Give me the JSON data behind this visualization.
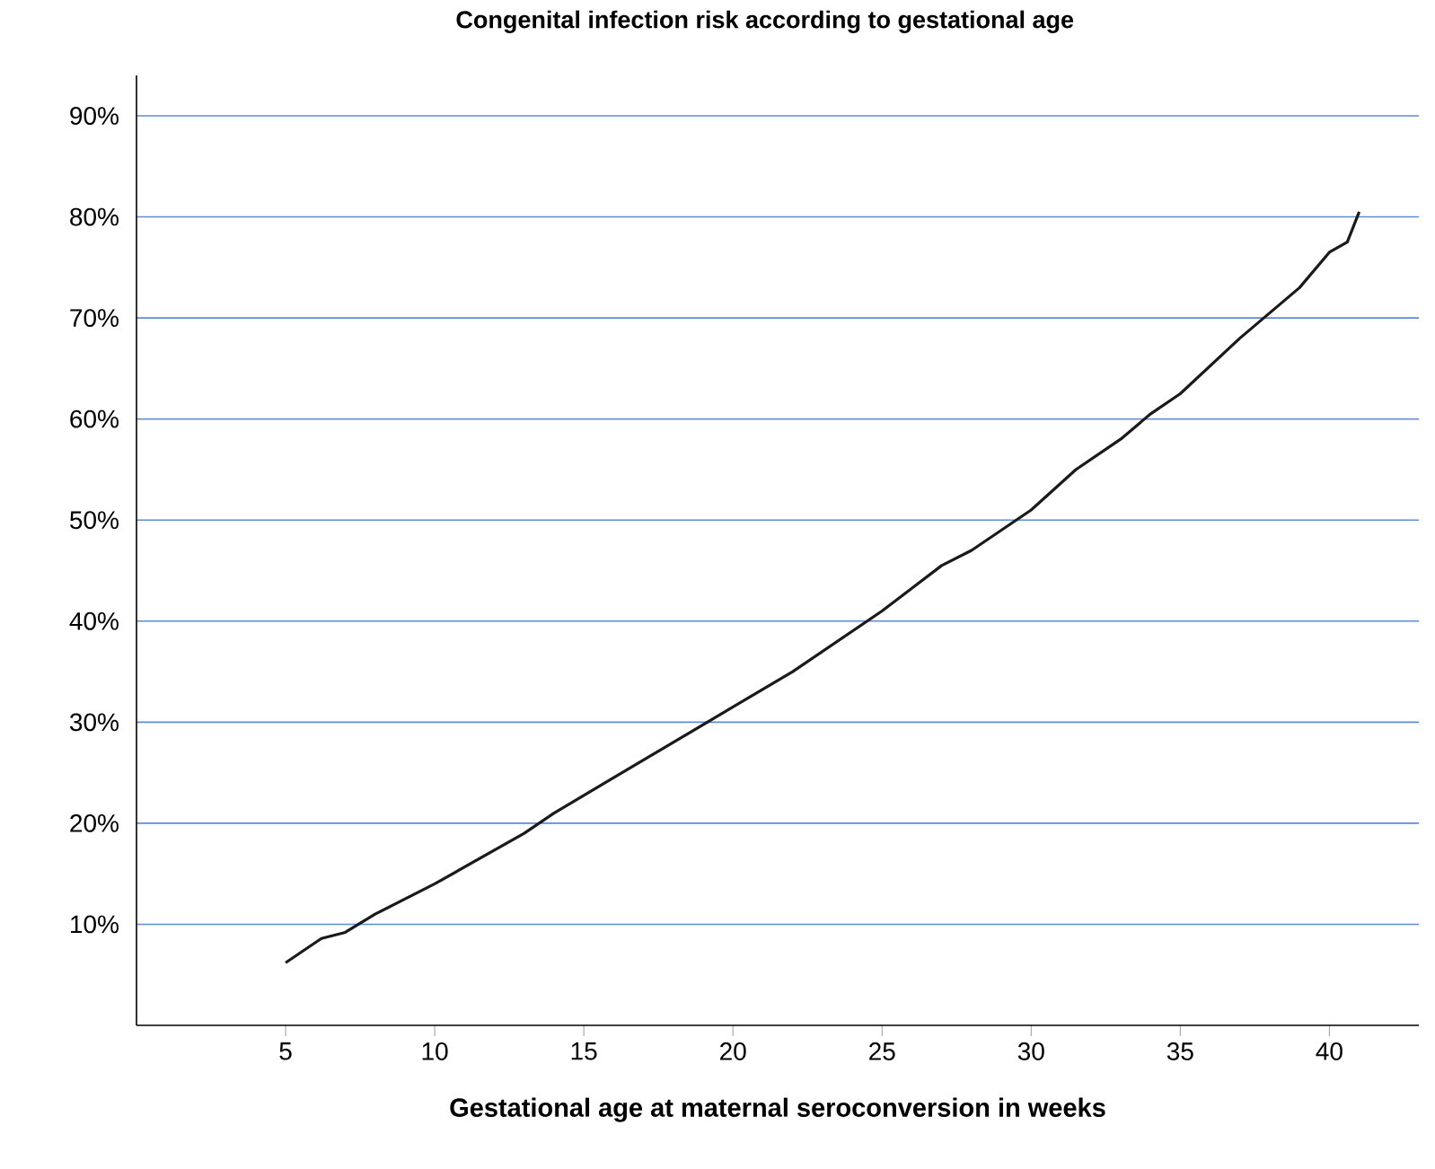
{
  "chart_data": {
    "type": "line",
    "title": "Congenital infection risk according to gestational age",
    "xlabel": "Gestational age at maternal seroconversion in weeks",
    "series": [
      {
        "color": "#1a1a1a",
        "x": [
          5,
          6.2,
          7,
          8,
          10,
          13,
          14,
          16,
          20,
          22,
          25,
          27,
          28,
          30,
          31.5,
          33,
          34,
          35,
          37,
          39,
          40,
          40.6,
          41
        ],
        "values": [
          6.2,
          8.6,
          9.2,
          11,
          14,
          19,
          21,
          24.5,
          31.5,
          35,
          41,
          45.5,
          47,
          51,
          55,
          58,
          60.5,
          62.5,
          68,
          73,
          76.5,
          77.5,
          80.5
        ]
      }
    ],
    "xlim": [
      0,
      43
    ],
    "ylim": [
      0,
      94
    ],
    "xticks": [
      5,
      10,
      15,
      20,
      25,
      30,
      35,
      40
    ],
    "yticks": [
      {
        "value": 10,
        "label": "10%"
      },
      {
        "value": 20,
        "label": "20%"
      },
      {
        "value": 30,
        "label": "30%"
      },
      {
        "value": 40,
        "label": "40%"
      },
      {
        "value": 50,
        "label": "50%"
      },
      {
        "value": 60,
        "label": "60%"
      },
      {
        "value": 70,
        "label": "70%"
      },
      {
        "value": 80,
        "label": "80%"
      },
      {
        "value": 90,
        "label": "90%"
      }
    ],
    "grid": "y",
    "marker": "none",
    "line_style": "solid"
  }
}
